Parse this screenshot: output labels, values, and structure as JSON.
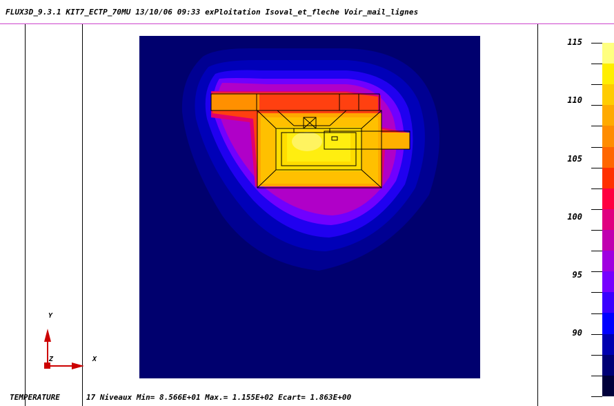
{
  "header": {
    "title": "FLUX3D_9.3.1 KIT7_ECTP_70MU 13/10/06 09:33 exPloitation Isoval_et_fleche Voir_mail_lignes"
  },
  "axes": {
    "y_label": "Y",
    "x_label": "X",
    "z_label": "Z"
  },
  "scale": {
    "labels": [
      "115",
      "110",
      "105",
      "100",
      "95",
      "90"
    ],
    "colors": [
      "#00003a",
      "#000075",
      "#0000b0",
      "#0000ff",
      "#3a00ff",
      "#7700ff",
      "#a000e0",
      "#c000b0",
      "#e00080",
      "#ff0040",
      "#ff3000",
      "#ff6600",
      "#ff8c00",
      "#ffaa00",
      "#ffcc00",
      "#ffee00",
      "#ffff80"
    ]
  },
  "footer": {
    "variable": "TEMPERATURE",
    "info": "17 Niveaux Min= 8.566E+01 Max.= 1.155E+02 Ecart= 1.863E+00"
  }
}
